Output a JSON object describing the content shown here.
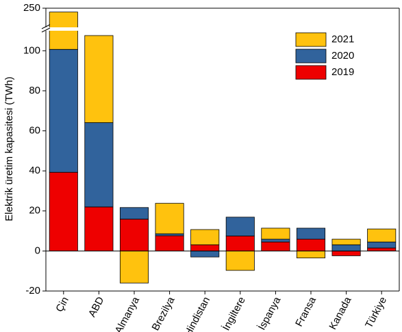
{
  "chart_data": {
    "type": "stacked_bar",
    "y_label": "Elektrik üretim kapasitesi (TWh)",
    "categories": [
      "Çin",
      "ABD",
      "Almanya",
      "Brezilya",
      "Hindistan",
      "İngiltere",
      "İspanya",
      "Fransa",
      "Kanada",
      "Türkiye"
    ],
    "series": [
      {
        "name": "2019",
        "color": "#ee0000",
        "values": [
          39.3,
          22,
          15.9,
          7.6,
          3.1,
          7.5,
          4.5,
          5.9,
          -2.4,
          1.5
        ]
      },
      {
        "name": "2020",
        "color": "#31639c",
        "values": [
          61.4,
          42.1,
          5.8,
          1,
          -3,
          9.4,
          1.4,
          5.5,
          3.1,
          3
        ]
      },
      {
        "name": "2021",
        "color": "#ffc20e",
        "values": [
          145.3,
          43.5,
          -16,
          15.2,
          7.6,
          -9.7,
          5.5,
          -3.5,
          2.8,
          6.5
        ]
      }
    ],
    "ylim": [
      -20,
      250
    ],
    "ybreak": [
      110,
      230
    ],
    "yticks": [
      -20,
      0,
      20,
      40,
      60,
      80,
      100,
      250
    ],
    "legend": "upper right"
  }
}
